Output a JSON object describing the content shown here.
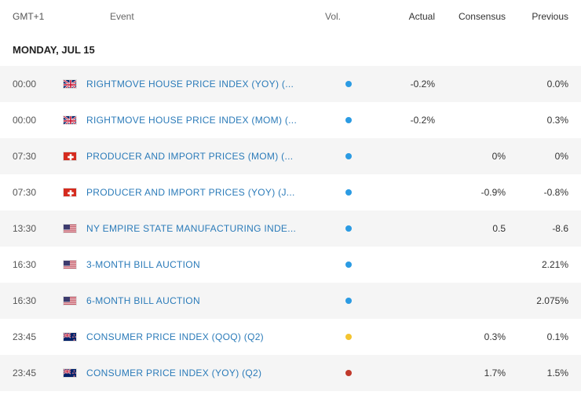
{
  "colors": {
    "link": "#2b7bb9",
    "text": "#333333",
    "muted": "#666666",
    "row_odd": "#f5f5f5",
    "row_even": "#ffffff",
    "vol_low": "#2b9be3",
    "vol_med": "#f4c430",
    "vol_high": "#c0392b"
  },
  "header": {
    "time": "GMT+1",
    "event": "Event",
    "vol": "Vol.",
    "actual": "Actual",
    "consensus": "Consensus",
    "previous": "Previous"
  },
  "date_label": "MONDAY, JUL 15",
  "flags": {
    "gb": {
      "name": "United Kingdom"
    },
    "ch": {
      "name": "Switzerland"
    },
    "us": {
      "name": "United States"
    },
    "nz": {
      "name": "New Zealand"
    }
  },
  "rows": [
    {
      "time": "00:00",
      "flag": "gb",
      "event": "RIGHTMOVE HOUSE PRICE INDEX (YOY) (...",
      "vol": "low",
      "actual": "-0.2%",
      "consensus": "",
      "previous": "0.0%"
    },
    {
      "time": "00:00",
      "flag": "gb",
      "event": "RIGHTMOVE HOUSE PRICE INDEX (MOM) (...",
      "vol": "low",
      "actual": "-0.2%",
      "consensus": "",
      "previous": "0.3%"
    },
    {
      "time": "07:30",
      "flag": "ch",
      "event": "PRODUCER AND IMPORT PRICES (MOM) (...",
      "vol": "low",
      "actual": "",
      "consensus": "0%",
      "previous": "0%"
    },
    {
      "time": "07:30",
      "flag": "ch",
      "event": "PRODUCER AND IMPORT PRICES (YOY) (J...",
      "vol": "low",
      "actual": "",
      "consensus": "-0.9%",
      "previous": "-0.8%"
    },
    {
      "time": "13:30",
      "flag": "us",
      "event": "NY EMPIRE STATE MANUFACTURING INDE...",
      "vol": "low",
      "actual": "",
      "consensus": "0.5",
      "previous": "-8.6"
    },
    {
      "time": "16:30",
      "flag": "us",
      "event": "3-MONTH BILL AUCTION",
      "vol": "low",
      "actual": "",
      "consensus": "",
      "previous": "2.21%"
    },
    {
      "time": "16:30",
      "flag": "us",
      "event": "6-MONTH BILL AUCTION",
      "vol": "low",
      "actual": "",
      "consensus": "",
      "previous": "2.075%"
    },
    {
      "time": "23:45",
      "flag": "nz",
      "event": "CONSUMER PRICE INDEX (QOQ) (Q2)",
      "vol": "med",
      "actual": "",
      "consensus": "0.3%",
      "previous": "0.1%"
    },
    {
      "time": "23:45",
      "flag": "nz",
      "event": "CONSUMER PRICE INDEX (YOY) (Q2)",
      "vol": "high",
      "actual": "",
      "consensus": "1.7%",
      "previous": "1.5%"
    }
  ]
}
